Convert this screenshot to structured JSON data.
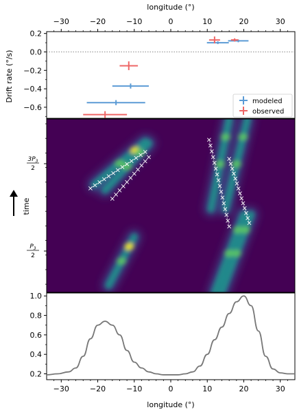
{
  "chart_data": [
    {
      "type": "scatter",
      "panel": "drift-rate",
      "xlabel_top": "longitude (°)",
      "ylabel": "Drift rate (°/s)",
      "xlim": [
        -34,
        34
      ],
      "ylim": [
        -0.72,
        0.22
      ],
      "xticks": [
        -30,
        -20,
        -10,
        0,
        10,
        20,
        30
      ],
      "yticks": [
        0.2,
        0.0,
        -0.2,
        -0.4,
        -0.6
      ],
      "ytick_labels": [
        "0.2",
        "0.0",
        "−0.2",
        "−0.4",
        "−0.6"
      ],
      "zero_line": true,
      "legend_position": "lower-right",
      "series": [
        {
          "name": "modeled",
          "color": "#5b9bd5",
          "points": [
            {
              "x": 12.9,
              "xerr": 3.0,
              "y": 0.1,
              "yerr": 0.0
            },
            {
              "x": 18.5,
              "xerr": 2.8,
              "y": 0.12,
              "yerr": 0.0
            },
            {
              "x": -11.0,
              "xerr": 5.0,
              "y": -0.37,
              "yerr": 0.02
            },
            {
              "x": -15.0,
              "xerr": 8.0,
              "y": -0.55,
              "yerr": 0.02
            }
          ]
        },
        {
          "name": "observed",
          "color": "#ee6666",
          "points": [
            {
              "x": 12.0,
              "xerr": 1.5,
              "y": 0.13,
              "yerr": 0.03
            },
            {
              "x": 17.5,
              "xerr": 1.0,
              "y": 0.13,
              "yerr": 0.01
            },
            {
              "x": -11.5,
              "xerr": 2.5,
              "y": -0.15,
              "yerr": 0.04
            },
            {
              "x": -18.0,
              "xerr": 6.0,
              "y": -0.68,
              "yerr": 0.03
            }
          ]
        }
      ]
    },
    {
      "type": "heatmap",
      "panel": "time-longitude",
      "ylabel": "time",
      "xlim": [
        -34,
        34
      ],
      "ytick_labels": [
        {
          "num": "3P",
          "sub": "3",
          "den": "2"
        },
        {
          "num": "P",
          "sub": "3",
          "den": "2"
        }
      ],
      "colormap": [
        "#440154",
        "#3b528b",
        "#21918c",
        "#5ec962",
        "#fde725"
      ],
      "tracks": [
        {
          "x0": -7.0,
          "x1": -21.0,
          "t0": 0.13,
          "t1": 0.38
        },
        {
          "x0": -6.0,
          "x1": -18.0,
          "t0": 0.14,
          "t1": 0.41
        },
        {
          "x0": -10.0,
          "x1": -17.0,
          "t0": 0.68,
          "t1": 0.96
        },
        {
          "x0": 16.0,
          "x1": 11.0,
          "t0": 0.0,
          "t1": 0.52
        },
        {
          "x0": 21.0,
          "x1": 15.0,
          "t0": 0.0,
          "t1": 0.52
        },
        {
          "x0": 20.0,
          "x1": 12.0,
          "t0": 0.55,
          "t1": 1.0
        },
        {
          "x0": 22.0,
          "x1": 14.0,
          "t0": 0.55,
          "t1": 1.0
        }
      ],
      "marker_tracks": [
        {
          "x0": -22.0,
          "x1": -7.0,
          "t0": 0.4,
          "t1": 0.19,
          "n": 13
        },
        {
          "x0": -16.0,
          "x1": -6.0,
          "t0": 0.46,
          "t1": 0.22,
          "n": 11
        },
        {
          "x0": 10.5,
          "x1": 16.0,
          "t0": 0.12,
          "t1": 0.62,
          "n": 16
        },
        {
          "x0": 16.0,
          "x1": 21.5,
          "t0": 0.23,
          "t1": 0.6,
          "n": 14
        }
      ]
    },
    {
      "type": "line",
      "panel": "profile",
      "xlabel": "longitude (°)",
      "xlim": [
        -34,
        34
      ],
      "ylim": [
        0.14,
        1.03
      ],
      "xticks": [
        -30,
        -20,
        -10,
        0,
        10,
        20,
        30
      ],
      "yticks": [
        0.2,
        0.4,
        0.6,
        0.8,
        1.0
      ],
      "ytick_labels": [
        "0.2",
        "0.4",
        "0.6",
        "0.8",
        "1.0"
      ],
      "line_color": "#777777",
      "x": [
        -34,
        -31,
        -28,
        -26,
        -24,
        -22,
        -20,
        -18,
        -16,
        -14,
        -12,
        -10,
        -8,
        -6,
        -4,
        -2,
        0,
        2,
        4,
        6,
        8,
        10,
        12,
        14,
        16,
        18,
        20,
        22,
        24,
        26,
        28,
        30,
        32,
        34
      ],
      "y": [
        0.19,
        0.2,
        0.22,
        0.26,
        0.38,
        0.56,
        0.7,
        0.74,
        0.7,
        0.6,
        0.44,
        0.32,
        0.26,
        0.22,
        0.2,
        0.19,
        0.19,
        0.19,
        0.2,
        0.22,
        0.28,
        0.4,
        0.55,
        0.68,
        0.82,
        0.94,
        1.0,
        0.9,
        0.64,
        0.38,
        0.25,
        0.21,
        0.2,
        0.2
      ]
    }
  ]
}
